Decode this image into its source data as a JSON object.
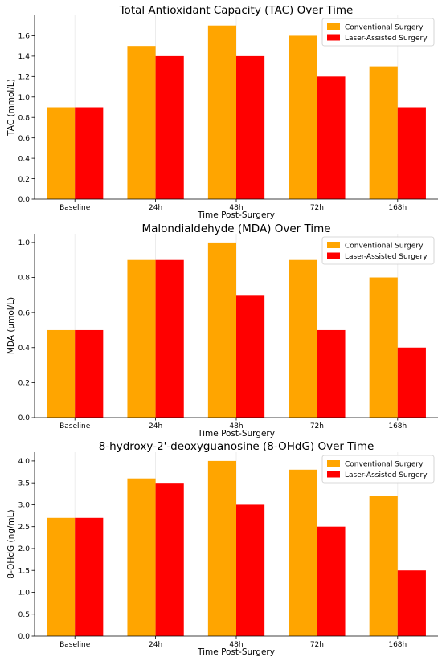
{
  "colors": {
    "conventional": "#ffa500",
    "laser": "#ff0000"
  },
  "chart_data": [
    {
      "type": "bar",
      "title": "Total Antioxidant Capacity (TAC) Over Time",
      "xlabel": "Time Post-Surgery",
      "ylabel": "TAC (mmol/L)",
      "categories": [
        "Baseline",
        "24h",
        "48h",
        "72h",
        "168h"
      ],
      "ylim": [
        0,
        1.8
      ],
      "yticks": [
        0.0,
        0.2,
        0.4,
        0.6,
        0.8,
        1.0,
        1.2,
        1.4,
        1.6
      ],
      "ytick_decimals": 1,
      "legend_position": "top-right",
      "series": [
        {
          "name": "Conventional Surgery",
          "values": [
            0.9,
            1.5,
            1.7,
            1.6,
            1.3
          ]
        },
        {
          "name": "Laser-Assisted Surgery",
          "values": [
            0.9,
            1.4,
            1.4,
            1.2,
            0.9
          ]
        }
      ]
    },
    {
      "type": "bar",
      "title": "Malondialdehyde (MDA) Over Time",
      "xlabel": "Time Post-Surgery",
      "ylabel": "MDA (µmol/L)",
      "categories": [
        "Baseline",
        "24h",
        "48h",
        "72h",
        "168h"
      ],
      "ylim": [
        0,
        1.05
      ],
      "yticks": [
        0.0,
        0.2,
        0.4,
        0.6,
        0.8,
        1.0
      ],
      "ytick_decimals": 1,
      "legend_position": "top-right",
      "series": [
        {
          "name": "Conventional Surgery",
          "values": [
            0.5,
            0.9,
            1.0,
            0.9,
            0.8
          ]
        },
        {
          "name": "Laser-Assisted Surgery",
          "values": [
            0.5,
            0.9,
            0.7,
            0.5,
            0.4
          ]
        }
      ]
    },
    {
      "type": "bar",
      "title": "8-hydroxy-2'-deoxyguanosine (8-OHdG) Over Time",
      "xlabel": "Time Post-Surgery",
      "ylabel": "8-OHdG (ng/mL)",
      "categories": [
        "Baseline",
        "24h",
        "48h",
        "72h",
        "168h"
      ],
      "ylim": [
        0,
        4.2
      ],
      "yticks": [
        0.0,
        0.5,
        1.0,
        1.5,
        2.0,
        2.5,
        3.0,
        3.5,
        4.0
      ],
      "ytick_decimals": 1,
      "legend_position": "top-right",
      "series": [
        {
          "name": "Conventional Surgery",
          "values": [
            2.7,
            3.6,
            4.0,
            3.8,
            3.2
          ]
        },
        {
          "name": "Laser-Assisted Surgery",
          "values": [
            2.7,
            3.5,
            3.0,
            2.5,
            1.5
          ]
        }
      ]
    }
  ]
}
